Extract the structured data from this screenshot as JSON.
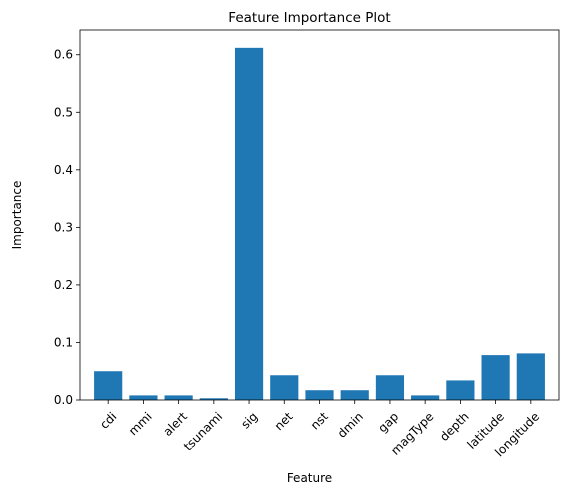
{
  "chart_data": {
    "type": "bar",
    "title": "Feature Importance Plot",
    "xlabel": "Feature",
    "ylabel": "Importance",
    "categories": [
      "cdi",
      "mmi",
      "alert",
      "tsunami",
      "sig",
      "net",
      "nst",
      "dmin",
      "gap",
      "magType",
      "depth",
      "latitude",
      "longitude"
    ],
    "values": [
      0.05,
      0.008,
      0.008,
      0.003,
      0.612,
      0.043,
      0.017,
      0.017,
      0.043,
      0.008,
      0.034,
      0.078,
      0.081
    ],
    "ylim": [
      0,
      0.643
    ],
    "yticks": [
      0.0,
      0.1,
      0.2,
      0.3,
      0.4,
      0.5,
      0.6
    ],
    "ytick_labels": [
      "0.0",
      "0.1",
      "0.2",
      "0.3",
      "0.4",
      "0.5",
      "0.6"
    ],
    "grid": false,
    "bar_color": "#1f77b4"
  }
}
